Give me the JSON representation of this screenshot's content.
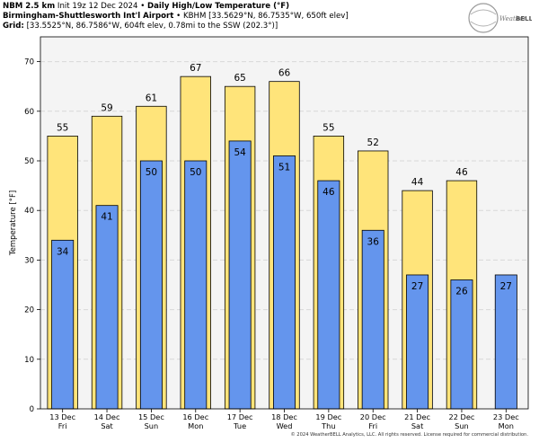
{
  "header": {
    "line1_bold": "NBM 2.5 km",
    "line1_init": "Init 19z 12 Dec 2024",
    "line1_title": "Daily High/Low Temperature (°F)",
    "line2_bold": "Birmingham-Shuttlesworth Int'l Airport",
    "line2_rest": "KBHM [33.5629°N, 86.7535°W, 650ft elev]",
    "line3_bold": "Grid:",
    "line3_rest": "[33.5525°N, 86.7586°W, 604ft elev, 0.78mi to the SSW (202.3°)]",
    "separator": "•"
  },
  "logo": {
    "text_weather": "Weather",
    "text_bell": "BELL"
  },
  "copyright": "© 2024 WeatherBELL Analytics, LLC. All rights reserved. License required for commercial distribution.",
  "colors": {
    "high": "#ffe47a",
    "low": "#6495ed",
    "plot_bg": "#f4f4f4",
    "grid": "#d8d8d8"
  },
  "chart_data": {
    "type": "bar",
    "ylabel": "Temperature [°F]",
    "ylim": [
      0,
      75
    ],
    "yticks": [
      0,
      10,
      20,
      30,
      40,
      50,
      60,
      70
    ],
    "grid": true,
    "categories": [
      {
        "date": "13 Dec",
        "day": "Fri"
      },
      {
        "date": "14 Dec",
        "day": "Sat"
      },
      {
        "date": "15 Dec",
        "day": "Sun"
      },
      {
        "date": "16 Dec",
        "day": "Mon"
      },
      {
        "date": "17 Dec",
        "day": "Tue"
      },
      {
        "date": "18 Dec",
        "day": "Wed"
      },
      {
        "date": "19 Dec",
        "day": "Thu"
      },
      {
        "date": "20 Dec",
        "day": "Fri"
      },
      {
        "date": "21 Dec",
        "day": "Sat"
      },
      {
        "date": "22 Dec",
        "day": "Sun"
      },
      {
        "date": "23 Dec",
        "day": "Mon"
      }
    ],
    "series": [
      {
        "key": "high",
        "values": [
          55,
          59,
          61,
          67,
          65,
          66,
          55,
          52,
          44,
          46,
          null
        ]
      },
      {
        "key": "low",
        "values": [
          34,
          41,
          50,
          50,
          54,
          51,
          46,
          36,
          27,
          26,
          27
        ]
      }
    ]
  }
}
